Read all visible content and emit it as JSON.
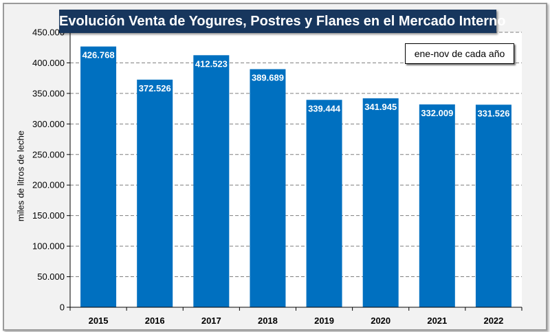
{
  "chart_data": {
    "type": "bar",
    "title": "Evolución Venta de Yogures, Postres y Flanes en el Mercado Interno",
    "xlabel": "",
    "ylabel": "miles de litros de leche",
    "annotation": "ene-nov de cada año",
    "categories": [
      "2015",
      "2016",
      "2017",
      "2018",
      "2019",
      "2020",
      "2021",
      "2022"
    ],
    "values": [
      426768,
      372526,
      412523,
      389689,
      339444,
      341945,
      332009,
      331526
    ],
    "value_labels": [
      "426.768",
      "372.526",
      "412.523",
      "389.689",
      "339.444",
      "341.945",
      "332.009",
      "331.526"
    ],
    "ylim": [
      0,
      450000
    ],
    "yticks": [
      0,
      50000,
      100000,
      150000,
      200000,
      250000,
      300000,
      350000,
      400000,
      450000
    ],
    "ytick_labels": [
      "0",
      "50.000",
      "100.000",
      "150.000",
      "200.000",
      "250.000",
      "300.000",
      "350.000",
      "400.000",
      "450.000"
    ],
    "grid": true,
    "bar_color": "#0070c0"
  }
}
